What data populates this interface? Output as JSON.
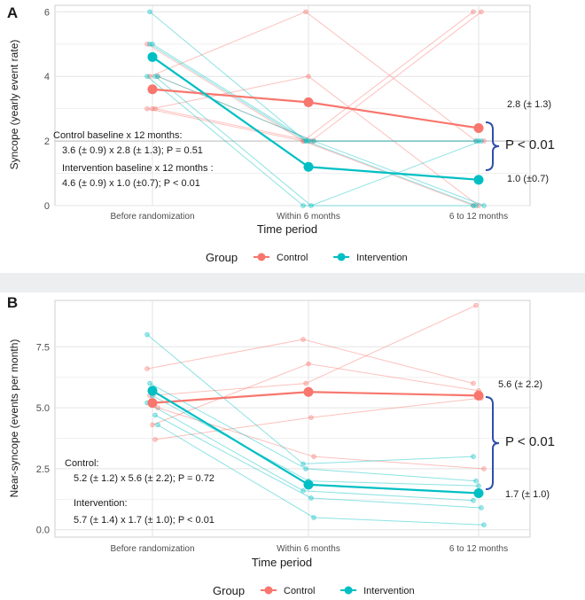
{
  "chart_data": [
    {
      "panel_label": "A",
      "type": "line",
      "ylabel": "Syncope (yearly event rate)",
      "xlabel": "Time period",
      "categories": [
        "Before randomization",
        "Within 6 months",
        "6 to 12 months"
      ],
      "ylim": [
        0,
        6.2
      ],
      "yticks": [
        0,
        2,
        4,
        6
      ],
      "ytick_labels": [
        "0",
        "2",
        "4",
        "6"
      ],
      "grid": true,
      "series": [
        {
          "name": "Control",
          "color": "#F8766D",
          "values": [
            3.6,
            3.2,
            2.4
          ]
        },
        {
          "name": "Intervention",
          "color": "#00BFC4",
          "values": [
            4.6,
            1.2,
            0.8
          ]
        }
      ],
      "individuals": [
        {
          "group": "Control",
          "values": [
            5.0,
            2.0,
            6.0
          ]
        },
        {
          "group": "Control",
          "values": [
            4.0,
            6.0,
            2.0
          ]
        },
        {
          "group": "Control",
          "values": [
            3.0,
            4.0,
            0.0
          ]
        },
        {
          "group": "Control",
          "values": [
            3.0,
            2.0,
            6.0
          ]
        },
        {
          "group": "Control",
          "values": [
            4.0,
            2.0,
            2.0
          ]
        },
        {
          "group": "Control",
          "values": [
            3.0,
            2.0,
            0.0
          ]
        },
        {
          "group": "Intervention",
          "values": [
            6.0,
            2.0,
            0.0
          ]
        },
        {
          "group": "Intervention",
          "values": [
            5.0,
            2.0,
            2.0
          ]
        },
        {
          "group": "Intervention",
          "values": [
            4.0,
            0.0,
            2.0
          ]
        },
        {
          "group": "Intervention",
          "values": [
            4.0,
            2.0,
            0.0
          ]
        },
        {
          "group": "Intervention",
          "values": [
            4.0,
            0.0,
            0.0
          ]
        },
        {
          "group": "Intervention",
          "values": [
            5.0,
            2.0,
            2.0
          ]
        }
      ],
      "value_labels": {
        "control_end": "2.8 (± 1.3)",
        "intervention_end": "1.0 (±0.7)"
      },
      "p_value_label": "P < 0.01",
      "annotations": {
        "control_title": "Control baseline x 12 months:",
        "control_stats": "3.6 (± 0.9) x 2.8 (± 1.3); P = 0.51",
        "intervention_title": "Intervention baseline x 12 months :",
        "intervention_stats": "4.6 (± 0.9) x 1.0 (±0.7); P < 0.01"
      },
      "legend": {
        "title": "Group",
        "position": "bottom",
        "entries": [
          "Control",
          "Intervention"
        ]
      }
    },
    {
      "panel_label": "B",
      "type": "line",
      "ylabel": "Near-syncope (events per month)",
      "xlabel": "Time period",
      "categories": [
        "Before randomization",
        "Within 6 months",
        "6 to 12 months"
      ],
      "ylim": [
        -0.3,
        9.4
      ],
      "yticks": [
        0,
        2.5,
        5,
        7.5
      ],
      "ytick_labels": [
        "0.0",
        "2.5",
        "5.0",
        "7.5"
      ],
      "grid": true,
      "series": [
        {
          "name": "Control",
          "color": "#F8766D",
          "values": [
            5.2,
            5.65,
            5.5
          ]
        },
        {
          "name": "Intervention",
          "color": "#00BFC4",
          "values": [
            5.7,
            1.85,
            1.5
          ]
        }
      ],
      "individuals": [
        {
          "group": "Control",
          "values": [
            6.6,
            7.8,
            6.0
          ]
        },
        {
          "group": "Control",
          "values": [
            5.5,
            6.0,
            9.2
          ]
        },
        {
          "group": "Control",
          "values": [
            4.3,
            6.8,
            5.7
          ]
        },
        {
          "group": "Control",
          "values": [
            3.7,
            4.6,
            5.4
          ]
        },
        {
          "group": "Control",
          "values": [
            5.0,
            3.0,
            2.5
          ]
        },
        {
          "group": "Intervention",
          "values": [
            8.0,
            2.7,
            3.0
          ]
        },
        {
          "group": "Intervention",
          "values": [
            6.0,
            2.5,
            2.0
          ]
        },
        {
          "group": "Intervention",
          "values": [
            5.5,
            2.0,
            1.8
          ]
        },
        {
          "group": "Intervention",
          "values": [
            4.7,
            1.3,
            0.9
          ]
        },
        {
          "group": "Intervention",
          "values": [
            4.3,
            0.5,
            0.2
          ]
        },
        {
          "group": "Intervention",
          "values": [
            5.2,
            1.6,
            1.2
          ]
        }
      ],
      "value_labels": {
        "control_end": "5.6 (± 2.2)",
        "intervention_end": "1.7 (± 1.0)"
      },
      "p_value_label": "P < 0.01",
      "annotations": {
        "control_title": "Control:",
        "control_stats": "5.2 (± 1.2) x 5.6 (± 2.2); P = 0.72",
        "intervention_title": "Intervention:",
        "intervention_stats": "5.7 (± 1.4) x 1.7 (± 1.0); P < 0.01"
      },
      "legend": {
        "title": "Group",
        "position": "bottom",
        "entries": [
          "Control",
          "Intervention"
        ]
      }
    }
  ]
}
